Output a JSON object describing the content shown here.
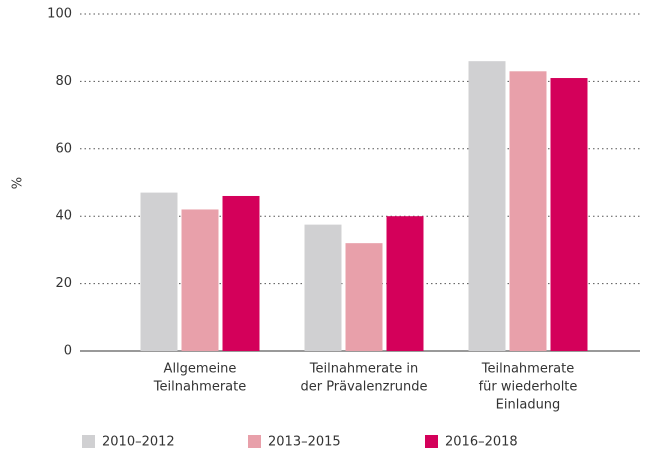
{
  "chart_data": {
    "type": "bar",
    "y_label": "%",
    "categories": [
      [
        "Allgemeine",
        "Teilnahmerate"
      ],
      [
        "Teilnahmerate in",
        "der Prävalenzrunde"
      ],
      [
        "Teilnahmerate",
        "für wiederholte",
        "Einladung"
      ]
    ],
    "series": [
      {
        "name": "2010–2012",
        "color": "#d0d0d2",
        "values": [
          47,
          37.5,
          86
        ]
      },
      {
        "name": "2013–2015",
        "color": "#e8a0aa",
        "values": [
          42,
          32,
          83
        ]
      },
      {
        "name": "2016–2018",
        "color": "#d4005a",
        "values": [
          46,
          40,
          81
        ]
      }
    ],
    "ylim": [
      0,
      100
    ],
    "yticks": [
      0,
      20,
      40,
      60,
      80,
      100
    ],
    "grid": true
  }
}
